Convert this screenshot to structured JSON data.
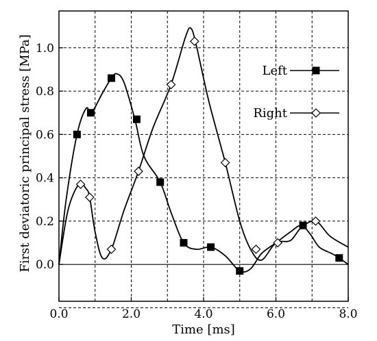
{
  "chart_data": {
    "type": "line",
    "title": "",
    "xlabel": "Time [ms]",
    "ylabel": "First deviatoric principal stress [MPa]",
    "xlim": [
      0,
      8
    ],
    "ylim": [
      -0.17,
      1.17
    ],
    "x_ticks": [
      0,
      2,
      4,
      6,
      8
    ],
    "x_tick_labels": [
      "0.0",
      "2.0",
      "4.0",
      "6.0",
      "8.0"
    ],
    "y_ticks": [
      0,
      0.2,
      0.4,
      0.6,
      0.8,
      1.0
    ],
    "y_tick_labels": [
      "0.0",
      "0.2",
      "0.4",
      "0.6",
      "0.8",
      "1.0"
    ],
    "grid": true,
    "legend_position": "right",
    "series": [
      {
        "name": "Left",
        "marker": "filled-square",
        "color": "#000000",
        "curve": [
          [
            0,
            0
          ],
          [
            0.2,
            0.3
          ],
          [
            0.5,
            0.6
          ],
          [
            0.75,
            0.72
          ],
          [
            0.9,
            0.7
          ],
          [
            1.2,
            0.79
          ],
          [
            1.45,
            0.86
          ],
          [
            1.6,
            0.88
          ],
          [
            1.8,
            0.84
          ],
          [
            2.1,
            0.67
          ],
          [
            2.35,
            0.5
          ],
          [
            2.8,
            0.38
          ],
          [
            3.1,
            0.24
          ],
          [
            3.45,
            0.1
          ],
          [
            3.8,
            0.07
          ],
          [
            4.2,
            0.08
          ],
          [
            4.6,
            0.04
          ],
          [
            5.0,
            -0.03
          ],
          [
            5.3,
            -0.02
          ],
          [
            5.6,
            0.05
          ],
          [
            6.0,
            0.1
          ],
          [
            6.4,
            0.15
          ],
          [
            6.7,
            0.18
          ],
          [
            6.95,
            0.14
          ],
          [
            7.2,
            0.08
          ],
          [
            7.55,
            0.05
          ],
          [
            7.75,
            0.03
          ],
          [
            8.0,
            0.0
          ]
        ],
        "markers": [
          [
            0.5,
            0.6
          ],
          [
            0.88,
            0.7
          ],
          [
            1.45,
            0.86
          ],
          [
            2.15,
            0.67
          ],
          [
            2.8,
            0.38
          ],
          [
            3.45,
            0.1
          ],
          [
            4.2,
            0.08
          ],
          [
            5.0,
            -0.03
          ],
          [
            6.75,
            0.18
          ],
          [
            7.75,
            0.03
          ]
        ]
      },
      {
        "name": "Right",
        "marker": "open-diamond",
        "color": "#000000",
        "curve": [
          [
            0,
            0
          ],
          [
            0.25,
            0.25
          ],
          [
            0.55,
            0.37
          ],
          [
            0.75,
            0.35
          ],
          [
            0.85,
            0.31
          ],
          [
            1.0,
            0.15
          ],
          [
            1.2,
            0.03
          ],
          [
            1.45,
            0.07
          ],
          [
            1.8,
            0.25
          ],
          [
            2.2,
            0.43
          ],
          [
            2.6,
            0.63
          ],
          [
            3.1,
            0.83
          ],
          [
            3.5,
            1.05
          ],
          [
            3.65,
            1.09
          ],
          [
            3.8,
            1.01
          ],
          [
            4.15,
            0.75
          ],
          [
            4.6,
            0.47
          ],
          [
            5.0,
            0.2
          ],
          [
            5.3,
            0.07
          ],
          [
            5.6,
            0.02
          ],
          [
            6.0,
            0.1
          ],
          [
            6.4,
            0.11
          ],
          [
            6.7,
            0.17
          ],
          [
            7.1,
            0.2
          ],
          [
            7.5,
            0.13
          ],
          [
            8.0,
            0.08
          ]
        ],
        "markers": [
          [
            0.6,
            0.37
          ],
          [
            0.85,
            0.31
          ],
          [
            1.45,
            0.07
          ],
          [
            2.2,
            0.43
          ],
          [
            3.1,
            0.83
          ],
          [
            3.75,
            1.03
          ],
          [
            4.6,
            0.47
          ],
          [
            5.45,
            0.07
          ],
          [
            6.05,
            0.1
          ],
          [
            7.1,
            0.2
          ]
        ]
      }
    ]
  }
}
